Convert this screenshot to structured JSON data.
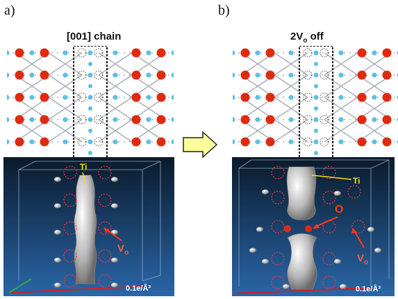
{
  "panels": [
    {
      "label": "a)",
      "title": "[001] chain",
      "annotations": {
        "ti": "Ti",
        "vo_base": "V",
        "vo_sub": "o",
        "density": "0.1e/Å³"
      }
    },
    {
      "label": "b)",
      "title_base": "2V",
      "title_sub": "o",
      "title_tail": " off",
      "annotations": {
        "ti": "Ti",
        "o": "O",
        "vo_base": "V",
        "vo_sub": "o",
        "density": "0.1e/Å³"
      }
    }
  ],
  "colors": {
    "oxygen": "#e02a10",
    "titanium": "#5cc0e6",
    "bond": "#a8b0b8",
    "box_bg_top": "#0a1a2a",
    "box_bg_bottom": "#2a66a8",
    "ti_label": "#ffe000",
    "vo_arrow": "#ff3a1a",
    "arrow_fill": "#ffff99"
  },
  "icons": {
    "transition_arrow": "right-arrow-icon"
  }
}
